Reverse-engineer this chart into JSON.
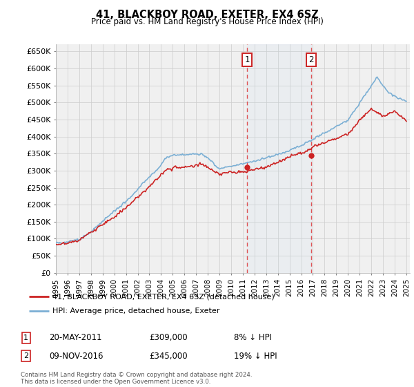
{
  "title": "41, BLACKBOY ROAD, EXETER, EX4 6SZ",
  "subtitle": "Price paid vs. HM Land Registry's House Price Index (HPI)",
  "ytick_labels": [
    "£0",
    "£50K",
    "£100K",
    "£150K",
    "£200K",
    "£250K",
    "£300K",
    "£350K",
    "£400K",
    "£450K",
    "£500K",
    "£550K",
    "£600K",
    "£650K"
  ],
  "yticks": [
    0,
    50000,
    100000,
    150000,
    200000,
    250000,
    300000,
    350000,
    400000,
    450000,
    500000,
    550000,
    600000,
    650000
  ],
  "hpi_color": "#7bafd4",
  "price_color": "#cc2222",
  "purchase1_date": 2011.38,
  "purchase1_price": 309000,
  "purchase2_date": 2016.86,
  "purchase2_price": 345000,
  "legend_label1": "41, BLACKBOY ROAD, EXETER, EX4 6SZ (detached house)",
  "legend_label2": "HPI: Average price, detached house, Exeter",
  "table_row1": [
    "1",
    "20-MAY-2011",
    "£309,000",
    "8% ↓ HPI"
  ],
  "table_row2": [
    "2",
    "09-NOV-2016",
    "£345,000",
    "19% ↓ HPI"
  ],
  "footnote": "Contains HM Land Registry data © Crown copyright and database right 2024.\nThis data is licensed under the Open Government Licence v3.0.",
  "background_color": "#ffffff",
  "plot_bg_color": "#f0f0f0"
}
